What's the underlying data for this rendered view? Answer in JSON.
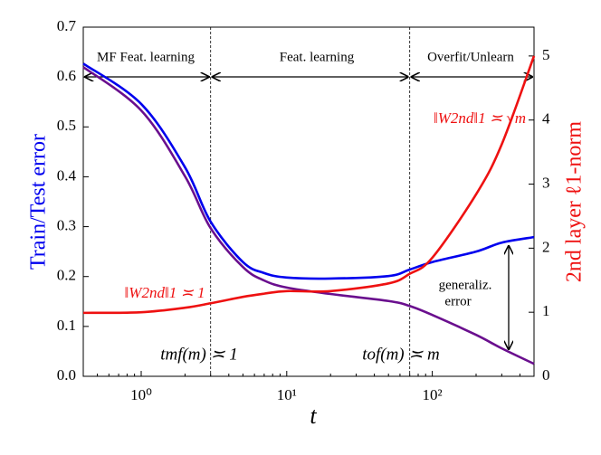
{
  "chart_data": {
    "type": "line",
    "xlabel": "t",
    "ylabel": "Train/Test error",
    "y2label": "2nd layer ℓ1-norm",
    "xscale": "log",
    "xlim": [
      0.4,
      500
    ],
    "ylim": [
      0,
      0.7
    ],
    "y2lim": [
      0,
      5.45
    ],
    "xticks": [
      {
        "value": 1,
        "label": "10⁰"
      },
      {
        "value": 10,
        "label": "10¹"
      },
      {
        "value": 100,
        "label": "10²"
      }
    ],
    "yticks": [
      {
        "value": 0,
        "label": "0.0"
      },
      0.1,
      0.2,
      0.3,
      0.4,
      0.5,
      0.6,
      0.7
    ],
    "y2ticks": [
      0,
      1,
      2,
      3,
      4,
      5
    ],
    "vlines": [
      3,
      70
    ],
    "x": [
      0.4,
      1,
      2,
      3,
      5,
      7,
      10,
      20,
      50,
      70,
      100,
      200,
      300,
      500
    ],
    "series": [
      {
        "color": "#0000ee",
        "values": [
          0.627,
          0.546,
          0.419,
          0.31,
          0.229,
          0.207,
          0.198,
          0.196,
          0.201,
          0.214,
          0.229,
          0.25,
          0.268,
          0.279
        ]
      },
      {
        "color": "#6a0f8e",
        "values": [
          0.62,
          0.533,
          0.401,
          0.297,
          0.219,
          0.192,
          0.178,
          0.165,
          0.151,
          0.141,
          0.123,
          0.083,
          0.056,
          0.025
        ]
      },
      {
        "color": "#ee1111",
        "axis": "y2",
        "values": [
          0.99,
          1.0,
          1.07,
          1.14,
          1.24,
          1.29,
          1.33,
          1.33,
          1.45,
          1.6,
          1.85,
          2.84,
          3.62,
          5.0
        ]
      }
    ],
    "annotations": {
      "region1": "MF Feat. learning",
      "region2": "Feat. learning",
      "region3": "Overfit/Unlearn",
      "norm_late": "‖W2nd‖1 ≍ √m",
      "norm_early": "‖W2nd‖1 ≍ 1",
      "tmf": "tmf(m) ≍ 1",
      "tof": "tof(m) ≍ m",
      "gen1": "generaliz.",
      "gen2": "error"
    }
  }
}
